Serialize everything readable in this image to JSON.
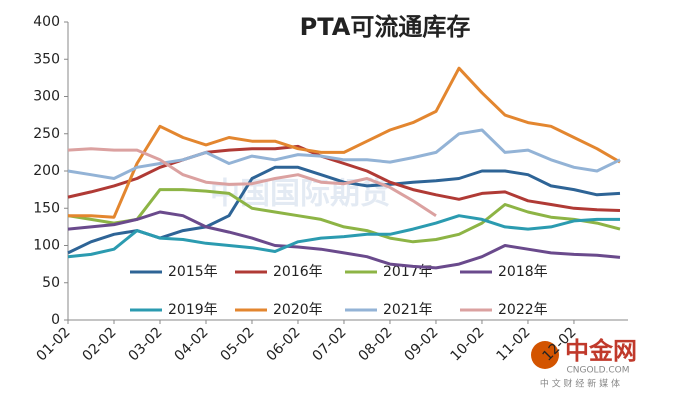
{
  "chart_data": {
    "type": "line",
    "title": "PTA可流通库存",
    "categories": [
      "01-02",
      null,
      "02-02",
      null,
      "03-02",
      null,
      "04-02",
      null,
      "05-02",
      null,
      "06-02",
      null,
      "07-02",
      null,
      "08-02",
      null,
      "09-02",
      null,
      "10-02",
      null,
      "11-02",
      null,
      "12-02",
      null,
      null
    ],
    "series": [
      {
        "name": "2015年",
        "color": "#2e6496",
        "values": [
          90,
          105,
          115,
          120,
          110,
          120,
          125,
          140,
          190,
          205,
          205,
          195,
          185,
          180,
          182,
          185,
          187,
          190,
          200,
          200,
          195,
          180,
          175,
          168,
          170
        ]
      },
      {
        "name": "2016年",
        "color": "#b03a35",
        "values": [
          165,
          172,
          180,
          190,
          205,
          215,
          225,
          228,
          230,
          230,
          233,
          220,
          210,
          200,
          185,
          175,
          168,
          162,
          170,
          172,
          160,
          155,
          150,
          148,
          147
        ]
      },
      {
        "name": "2017年",
        "color": "#8db445",
        "values": [
          140,
          135,
          130,
          135,
          175,
          175,
          173,
          170,
          150,
          145,
          140,
          135,
          125,
          120,
          110,
          105,
          108,
          115,
          130,
          155,
          145,
          138,
          135,
          130,
          122
        ]
      },
      {
        "name": "2018年",
        "color": "#6a4a8c",
        "values": [
          122,
          125,
          128,
          135,
          145,
          140,
          125,
          118,
          110,
          100,
          98,
          95,
          90,
          85,
          75,
          72,
          70,
          75,
          85,
          100,
          95,
          90,
          88,
          87,
          84
        ]
      },
      {
        "name": "2019年",
        "color": "#2b9bb0",
        "values": [
          85,
          88,
          95,
          120,
          110,
          108,
          103,
          100,
          97,
          92,
          105,
          110,
          112,
          115,
          115,
          122,
          130,
          140,
          135,
          125,
          122,
          125,
          133,
          135,
          135
        ]
      },
      {
        "name": "2020年",
        "color": "#e3862f",
        "values": [
          140,
          140,
          138,
          210,
          260,
          245,
          235,
          245,
          240,
          240,
          230,
          225,
          225,
          240,
          255,
          265,
          280,
          338,
          305,
          275,
          265,
          260,
          245,
          230,
          212
        ]
      },
      {
        "name": "2021年",
        "color": "#93b3d6",
        "values": [
          200,
          195,
          190,
          205,
          210,
          215,
          225,
          210,
          220,
          215,
          222,
          220,
          215,
          215,
          212,
          218,
          225,
          250,
          255,
          225,
          228,
          215,
          205,
          200,
          215
        ]
      },
      {
        "name": "2022年",
        "color": "#dba1a0",
        "values": [
          228,
          230,
          228,
          228,
          215,
          195,
          185,
          182,
          183,
          190,
          195,
          185,
          183,
          190,
          178,
          160,
          140,
          null,
          null,
          null,
          null,
          null,
          null,
          null,
          null
        ]
      }
    ],
    "ylim": [
      0,
      400
    ],
    "yticks": [
      0,
      50,
      100,
      150,
      200,
      250,
      300,
      350,
      400
    ],
    "grid": false,
    "watermark": "中国国际期货",
    "logo": {
      "name": "中金网",
      "url": "CNGOLD.COM",
      "tagline": "中 文 财 经 新 媒 体"
    }
  }
}
